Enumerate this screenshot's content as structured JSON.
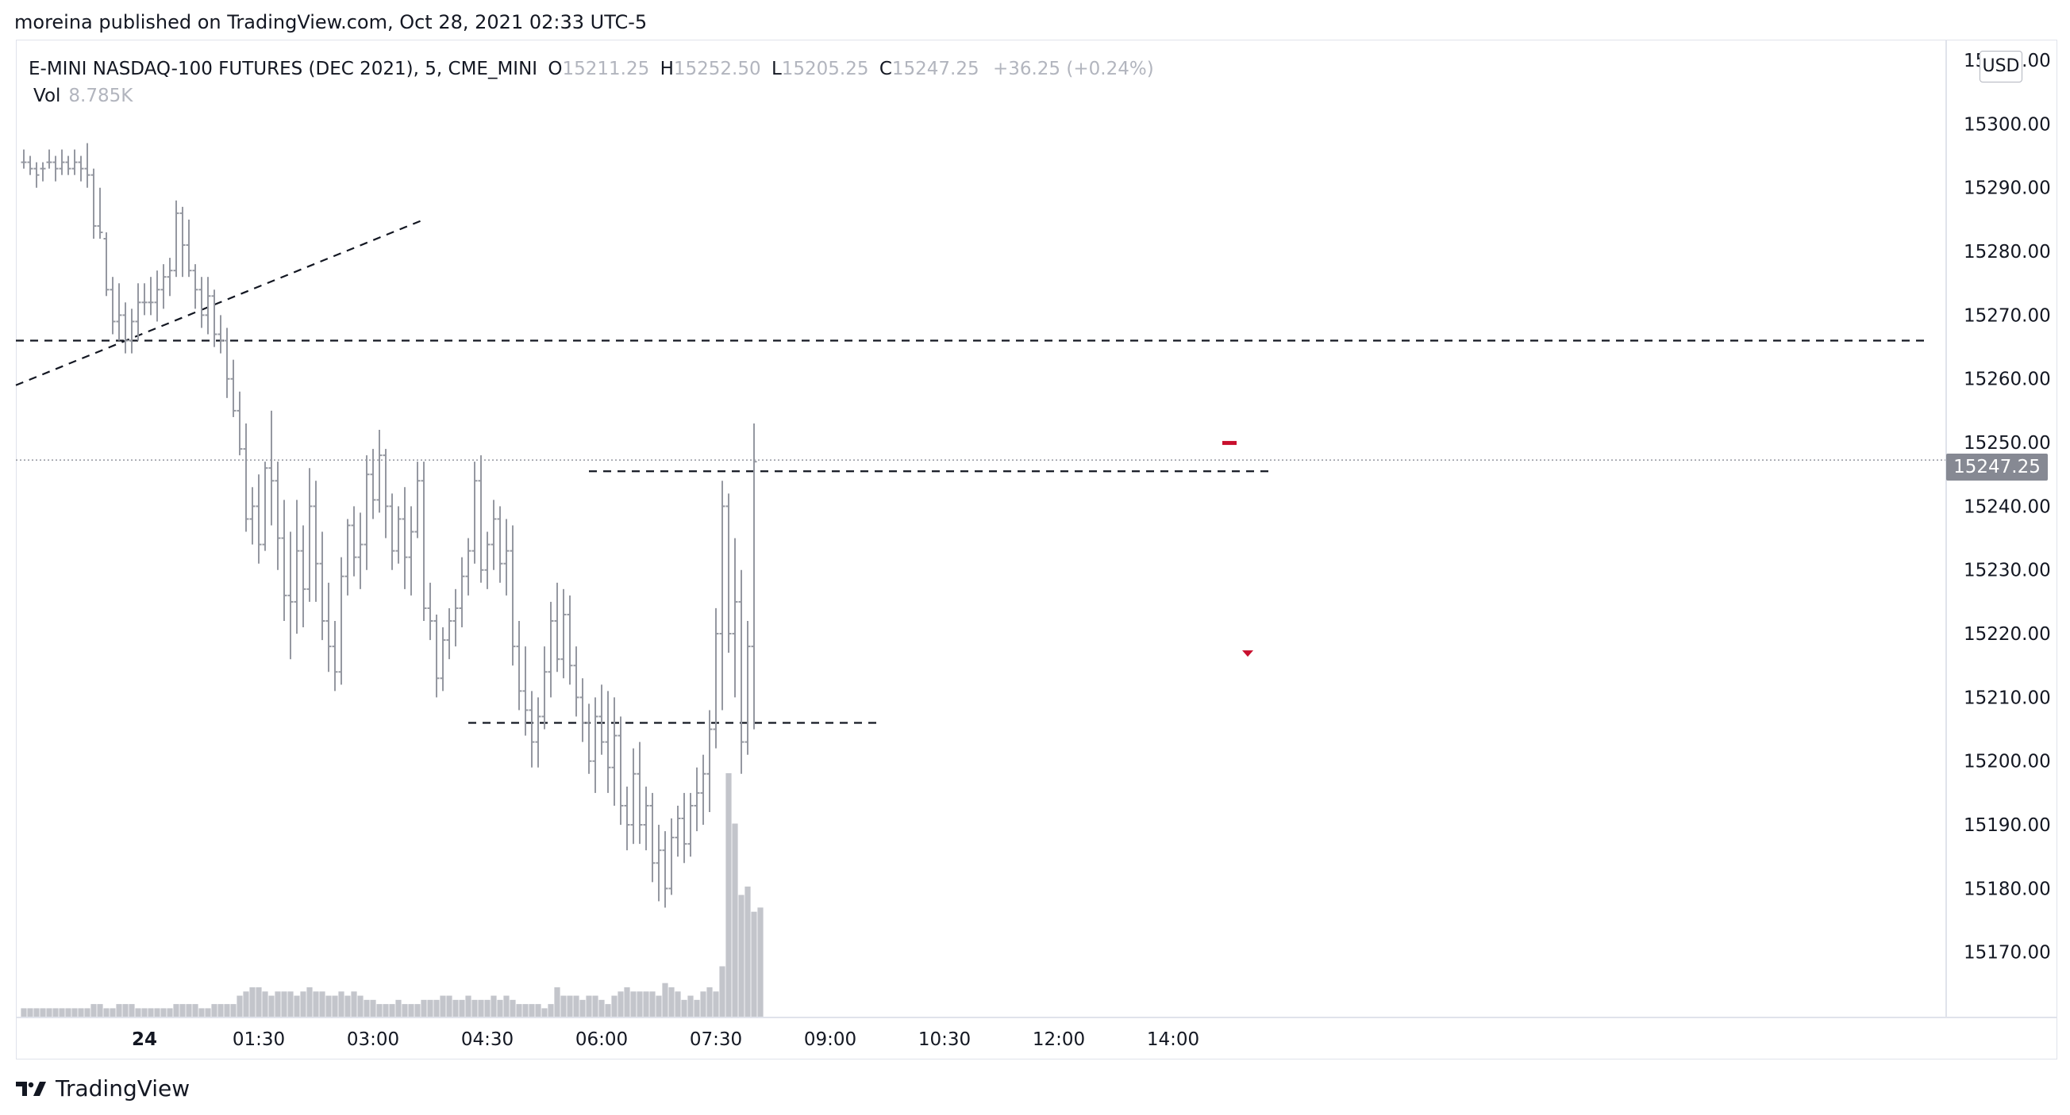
{
  "header": {
    "published_text": "moreina published on TradingView.com, Oct 28, 2021 02:33 UTC-5"
  },
  "legend": {
    "symbol": "E-MINI NASDAQ-100 FUTURES (DEC 2021), 5, CME_MINI",
    "open_label": "O",
    "open_value": "15211.25",
    "high_label": "H",
    "high_value": "15252.50",
    "low_label": "L",
    "low_value": "15205.25",
    "close_label": "C",
    "close_value": "15247.25",
    "change": "+36.25 (+0.24%)",
    "vol_label": "Vol",
    "vol_value": "8.785K"
  },
  "price_axis": {
    "currency": "USD",
    "current_price_tag": "15247.25"
  },
  "brand": {
    "name": "TradingView"
  },
  "colors": {
    "bar": "#9598a1",
    "volume": "#c3c5cb",
    "drawing": "#131722",
    "last_price_line": "#9598a1",
    "marker_red": "#c8102e"
  },
  "chart_data": {
    "type": "ohlc_bar",
    "title": "E-MINI NASDAQ-100 FUTURES (DEC 2021), 5, CME_MINI",
    "y_ticks": [
      15170,
      15180,
      15190,
      15200,
      15210,
      15220,
      15230,
      15240,
      15250,
      15260,
      15270,
      15280,
      15290,
      15300,
      15310
    ],
    "y_tick_labels": [
      "15170.00",
      "15180.00",
      "15190.00",
      "15200.00",
      "15210.00",
      "15220.00",
      "15230.00",
      "15240.00",
      "15250.00",
      "15260.00",
      "15270.00",
      "15280.00",
      "15290.00",
      "15300.00",
      "15310.00"
    ],
    "ylim": [
      15162,
      15312
    ],
    "x_tick_labels": [
      "24",
      "01:30",
      "03:00",
      "04:30",
      "06:00",
      "07:30",
      "09:00",
      "10:30",
      "12:00",
      "14:00"
    ],
    "x_tick_bar_index": [
      19,
      37,
      55,
      73,
      91,
      109,
      127,
      145,
      163,
      181
    ],
    "ohlc": [
      [
        15294,
        15296,
        15293,
        15294
      ],
      [
        15294,
        15295,
        15292,
        15293
      ],
      [
        15293,
        15294,
        15290,
        15292
      ],
      [
        15293,
        15294,
        15291,
        15293
      ],
      [
        15294,
        15296,
        15293,
        15294
      ],
      [
        15294,
        15295,
        15291,
        15293
      ],
      [
        15293,
        15296,
        15292,
        15294
      ],
      [
        15294,
        15295,
        15292,
        15293
      ],
      [
        15293,
        15296,
        15292,
        15294
      ],
      [
        15294,
        15295,
        15291,
        15293
      ],
      [
        15293,
        15297,
        15290,
        15292
      ],
      [
        15292,
        15293,
        15282,
        15284
      ],
      [
        15284,
        15290,
        15282,
        15283
      ],
      [
        15282,
        15283,
        15273,
        15274
      ],
      [
        15274,
        15276,
        15267,
        15269
      ],
      [
        15269,
        15275,
        15266,
        15270
      ],
      [
        15270,
        15272,
        15264,
        15266
      ],
      [
        15266,
        15271,
        15264,
        15269
      ],
      [
        15269,
        15275,
        15266,
        15272
      ],
      [
        15272,
        15275,
        15270,
        15272
      ],
      [
        15272,
        15276,
        15270,
        15272
      ],
      [
        15272,
        15277,
        15269,
        15274
      ],
      [
        15274,
        15278,
        15271,
        15276
      ],
      [
        15276,
        15279,
        15273,
        15277
      ],
      [
        15277,
        15288,
        15276,
        15286
      ],
      [
        15286,
        15287,
        15276,
        15281
      ],
      [
        15281,
        15285,
        15276,
        15277
      ],
      [
        15277,
        15278,
        15271,
        15274
      ],
      [
        15274,
        15276,
        15268,
        15270
      ],
      [
        15270,
        15276,
        15267,
        15273
      ],
      [
        15273,
        15274,
        15265,
        15267
      ],
      [
        15267,
        15270,
        15264,
        15266
      ],
      [
        15266,
        15268,
        15257,
        15260
      ],
      [
        15260,
        15263,
        15254,
        15255
      ],
      [
        15255,
        15258,
        15248,
        15249
      ],
      [
        15249,
        15253,
        15236,
        15238
      ],
      [
        15238,
        15243,
        15234,
        15240
      ],
      [
        15240,
        15245,
        15231,
        15234
      ],
      [
        15234,
        15247,
        15233,
        15246
      ],
      [
        15246,
        15255,
        15237,
        15244
      ],
      [
        15244,
        15247,
        15230,
        15235
      ],
      [
        15235,
        15241,
        15222,
        15226
      ],
      [
        15226,
        15236,
        15216,
        15225
      ],
      [
        15225,
        15241,
        15220,
        15233
      ],
      [
        15233,
        15237,
        15221,
        15227
      ],
      [
        15227,
        15246,
        15225,
        15240
      ],
      [
        15240,
        15244,
        15225,
        15231
      ],
      [
        15231,
        15236,
        15219,
        15222
      ],
      [
        15222,
        15228,
        15214,
        15218
      ],
      [
        15218,
        15222,
        15211,
        15214
      ],
      [
        15214,
        15232,
        15212,
        15229
      ],
      [
        15229,
        15238,
        15226,
        15237
      ],
      [
        15237,
        15240,
        15229,
        15232
      ],
      [
        15232,
        15239,
        15227,
        15234
      ],
      [
        15234,
        15248,
        15230,
        15245
      ],
      [
        15245,
        15249,
        15238,
        15241
      ],
      [
        15241,
        15252,
        15239,
        15248
      ],
      [
        15248,
        15249,
        15235,
        15240
      ],
      [
        15240,
        15242,
        15230,
        15233
      ],
      [
        15233,
        15240,
        15231,
        15238
      ],
      [
        15238,
        15243,
        15227,
        15232
      ],
      [
        15232,
        15240,
        15226,
        15236
      ],
      [
        15236,
        15247,
        15235,
        15244
      ],
      [
        15244,
        15247,
        15222,
        15224
      ],
      [
        15224,
        15228,
        15219,
        15222
      ],
      [
        15222,
        15223,
        15210,
        15213
      ],
      [
        15213,
        15221,
        15211,
        15219
      ],
      [
        15219,
        15224,
        15216,
        15222
      ],
      [
        15222,
        15227,
        15218,
        15224
      ],
      [
        15224,
        15232,
        15221,
        15229
      ],
      [
        15229,
        15235,
        15226,
        15233
      ],
      [
        15233,
        15247,
        15231,
        15244
      ],
      [
        15244,
        15248,
        15228,
        15230
      ],
      [
        15230,
        15236,
        15227,
        15234
      ],
      [
        15234,
        15241,
        15230,
        15238
      ],
      [
        15238,
        15240,
        15228,
        15231
      ],
      [
        15231,
        15238,
        15226,
        15233
      ],
      [
        15233,
        15237,
        15215,
        15218
      ],
      [
        15218,
        15222,
        15208,
        15211
      ],
      [
        15211,
        15218,
        15204,
        15208
      ],
      [
        15208,
        15211,
        15199,
        15203
      ],
      [
        15203,
        15210,
        15199,
        15207
      ],
      [
        15207,
        15218,
        15205,
        15214
      ],
      [
        15214,
        15225,
        15210,
        15222
      ],
      [
        15222,
        15228,
        15214,
        15216
      ],
      [
        15216,
        15227,
        15213,
        15223
      ],
      [
        15223,
        15226,
        15212,
        15215
      ],
      [
        15215,
        15218,
        15207,
        15210
      ],
      [
        15210,
        15213,
        15203,
        15206
      ],
      [
        15206,
        15209,
        15198,
        15200
      ],
      [
        15200,
        15210,
        15195,
        15207
      ],
      [
        15207,
        15212,
        15201,
        15203
      ],
      [
        15203,
        15211,
        15195,
        15199
      ],
      [
        15199,
        15210,
        15193,
        15204
      ],
      [
        15204,
        15207,
        15190,
        15193
      ],
      [
        15193,
        15196,
        15186,
        15190
      ],
      [
        15190,
        15202,
        15187,
        15198
      ],
      [
        15198,
        15203,
        15187,
        15190
      ],
      [
        15190,
        15196,
        15186,
        15193
      ],
      [
        15193,
        15195,
        15181,
        15184
      ],
      [
        15184,
        15190,
        15178,
        15186
      ],
      [
        15186,
        15189,
        15177,
        15180
      ],
      [
        15180,
        15191,
        15179,
        15188
      ],
      [
        15188,
        15193,
        15185,
        15191
      ],
      [
        15191,
        15195,
        15184,
        15187
      ],
      [
        15187,
        15195,
        15185,
        15193
      ],
      [
        15193,
        15199,
        15189,
        15195
      ],
      [
        15195,
        15201,
        15190,
        15198
      ],
      [
        15198,
        15208,
        15192,
        15205
      ],
      [
        15205,
        15224,
        15202,
        15220
      ],
      [
        15220,
        15244,
        15208,
        15240
      ],
      [
        15240,
        15242,
        15217,
        15220
      ],
      [
        15220,
        15235,
        15210,
        15225
      ],
      [
        15225,
        15230,
        15198,
        15203
      ],
      [
        15203,
        15222,
        15201,
        15218
      ],
      [
        15218,
        15253,
        15205,
        15247
      ]
    ],
    "volume_relative": [
      0.02,
      0.02,
      0.02,
      0.02,
      0.02,
      0.02,
      0.02,
      0.02,
      0.02,
      0.02,
      0.02,
      0.03,
      0.03,
      0.02,
      0.02,
      0.03,
      0.03,
      0.03,
      0.02,
      0.02,
      0.02,
      0.02,
      0.02,
      0.02,
      0.03,
      0.03,
      0.03,
      0.03,
      0.02,
      0.02,
      0.03,
      0.03,
      0.03,
      0.03,
      0.05,
      0.06,
      0.07,
      0.07,
      0.06,
      0.05,
      0.06,
      0.06,
      0.06,
      0.05,
      0.06,
      0.07,
      0.06,
      0.06,
      0.05,
      0.05,
      0.06,
      0.05,
      0.06,
      0.05,
      0.04,
      0.04,
      0.03,
      0.03,
      0.03,
      0.04,
      0.03,
      0.03,
      0.03,
      0.04,
      0.04,
      0.04,
      0.05,
      0.05,
      0.04,
      0.04,
      0.05,
      0.04,
      0.04,
      0.04,
      0.05,
      0.04,
      0.05,
      0.04,
      0.03,
      0.03,
      0.03,
      0.03,
      0.02,
      0.03,
      0.07,
      0.05,
      0.05,
      0.05,
      0.04,
      0.05,
      0.05,
      0.04,
      0.03,
      0.05,
      0.06,
      0.07,
      0.06,
      0.06,
      0.06,
      0.06,
      0.05,
      0.08,
      0.07,
      0.06,
      0.04,
      0.05,
      0.04,
      0.06,
      0.07,
      0.06,
      0.12,
      0.58,
      0.46,
      0.29,
      0.31,
      0.25,
      0.26
    ],
    "horizontal_lines": [
      15266,
      15206,
      15245.5
    ],
    "horizontal_line_spans_bar_index": [
      [
        -2,
        300
      ],
      [
        70,
        135
      ],
      [
        89,
        196
      ]
    ],
    "trendline": {
      "from": [
        -2,
        15259
      ],
      "to": [
        63,
        15285
      ]
    },
    "last_price": 15247.25,
    "markers": [
      {
        "type": "dash",
        "bar_index": 152,
        "price": 15250
      },
      {
        "type": "triangle-down",
        "bar_index": 156,
        "price": 15217
      }
    ]
  }
}
